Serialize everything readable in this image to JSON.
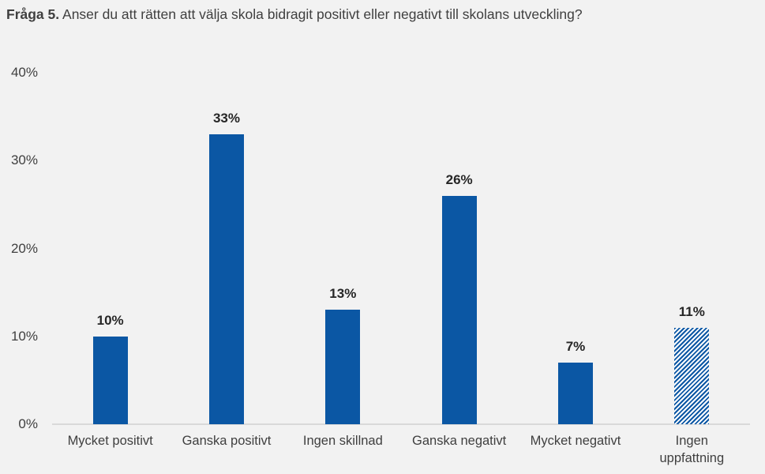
{
  "title": {
    "prefix": "Fråga 5.",
    "text": " Anser du att rätten att välja skola bidragit positivt eller negativt till skolans utveckling?"
  },
  "colors": {
    "bar_blue": "#0b57a4",
    "background": "#f2f2f2",
    "text": "#3f3f3f",
    "value_label": "#262626",
    "axis_line": "#d9d9d9"
  },
  "chart_data": {
    "type": "bar",
    "title": "Fråga 5. Anser du att rätten att välja skola bidragit positivt eller negativt till skolans utveckling?",
    "categories": [
      "Mycket positivt",
      "Ganska positivt",
      "Ingen skillnad",
      "Ganska negativt",
      "Mycket negativt",
      "Ingen\nuppfattning"
    ],
    "values": [
      10,
      33,
      13,
      26,
      7,
      11
    ],
    "value_labels": [
      "10%",
      "33%",
      "13%",
      "26%",
      "7%",
      "11%"
    ],
    "bar_styles": [
      "solid",
      "solid",
      "solid",
      "solid",
      "solid",
      "hatched"
    ],
    "xlabel": "",
    "ylabel": "",
    "ylim": [
      0,
      40
    ],
    "yticks": [
      {
        "value": 0,
        "label": "0%"
      },
      {
        "value": 10,
        "label": "10%"
      },
      {
        "value": 20,
        "label": "20%"
      },
      {
        "value": 30,
        "label": "30%"
      },
      {
        "value": 40,
        "label": "40%"
      }
    ],
    "grid": false,
    "legend": "none",
    "data_labels": "above bars, bold"
  }
}
